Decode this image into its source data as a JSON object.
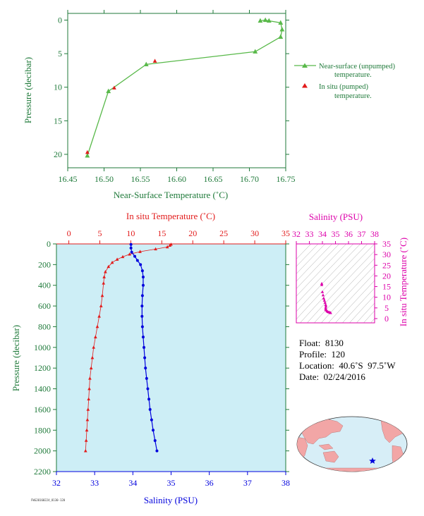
{
  "colors": {
    "green_axis": "#1f7a3a",
    "green_series": "#59b94a",
    "red": "#e21b1b",
    "blue": "#0000dd",
    "magenta": "#dd00aa",
    "panel_fill": "#cdeef6",
    "map_land": "#f2a6a6",
    "map_ocean": "#d7eef7"
  },
  "chart_data": [
    {
      "type": "line",
      "xlabel": "Near-Surface Temperature (˚C)",
      "ylabel": "Pressure (decibar)",
      "xlim": [
        16.45,
        16.75
      ],
      "ylim": [
        22,
        -1
      ],
      "xticks": [
        "16.45",
        "16.50",
        "16.55",
        "16.60",
        "16.65",
        "16.70",
        "16.75"
      ],
      "yticks": [
        "0",
        "5",
        "10",
        "15",
        "20"
      ],
      "legend": {
        "placement": "right",
        "entries": [
          "Near-surface (unpumped) temperature.",
          "In situ (pumped) temperature."
        ]
      },
      "series": [
        {
          "name": "Near-surface (unpumped) temperature.",
          "points": [
            [
              16.477,
              20.2
            ],
            [
              16.506,
              10.6
            ],
            [
              16.558,
              6.6
            ],
            [
              16.708,
              4.7
            ],
            [
              16.743,
              2.5
            ],
            [
              16.745,
              1.4
            ],
            [
              16.743,
              0.4
            ],
            [
              16.727,
              0.1
            ],
            [
              16.722,
              0.0
            ],
            [
              16.715,
              0.1
            ]
          ]
        },
        {
          "name": "In situ (pumped) temperature.",
          "points": [
            [
              16.477,
              19.7
            ],
            [
              16.514,
              10.1
            ],
            [
              16.57,
              6.1
            ]
          ]
        }
      ]
    },
    {
      "type": "line",
      "ylabel": "Pressure (decibar)",
      "ylim": [
        2200,
        0
      ],
      "yticks": [
        "0",
        "200",
        "400",
        "600",
        "800",
        "1000",
        "1200",
        "1400",
        "1600",
        "1800",
        "2000",
        "2200"
      ],
      "x_top": {
        "label": "In situ Temperature (˚C)",
        "lim": [
          -2,
          35
        ],
        "ticks": [
          "0",
          "5",
          "10",
          "15",
          "20",
          "25",
          "30",
          "35"
        ]
      },
      "x_bottom": {
        "label": "Salinity (PSU)",
        "lim": [
          32,
          38
        ],
        "ticks": [
          "32",
          "33",
          "34",
          "35",
          "36",
          "37",
          "38"
        ]
      },
      "series": [
        {
          "name": "In situ Temperature (˚C)",
          "axis": "top",
          "points": [
            [
              16.5,
              5
            ],
            [
              16.3,
              15
            ],
            [
              15.9,
              30
            ],
            [
              14,
              50
            ],
            [
              11.5,
              75
            ],
            [
              9.8,
              100
            ],
            [
              8.7,
              125
            ],
            [
              7.8,
              150
            ],
            [
              7,
              180
            ],
            [
              6.4,
              220
            ],
            [
              5.9,
              270
            ],
            [
              5.7,
              320
            ],
            [
              5.6,
              380
            ],
            [
              5.4,
              500
            ],
            [
              5.2,
              600
            ],
            [
              4.9,
              700
            ],
            [
              4.6,
              800
            ],
            [
              4.3,
              900
            ],
            [
              4.0,
              1000
            ],
            [
              3.8,
              1100
            ],
            [
              3.6,
              1200
            ],
            [
              3.4,
              1300
            ],
            [
              3.3,
              1400
            ],
            [
              3.2,
              1500
            ],
            [
              3.1,
              1600
            ],
            [
              3.0,
              1700
            ],
            [
              2.9,
              1800
            ],
            [
              2.8,
              1900
            ],
            [
              2.7,
              2000
            ]
          ]
        },
        {
          "name": "Salinity (PSU)",
          "axis": "bottom",
          "points": [
            [
              33.95,
              5
            ],
            [
              33.95,
              40
            ],
            [
              33.97,
              80
            ],
            [
              34.05,
              120
            ],
            [
              34.12,
              160
            ],
            [
              34.2,
              200
            ],
            [
              34.25,
              260
            ],
            [
              34.27,
              320
            ],
            [
              34.27,
              400
            ],
            [
              34.25,
              500
            ],
            [
              34.24,
              600
            ],
            [
              34.24,
              700
            ],
            [
              34.25,
              800
            ],
            [
              34.27,
              900
            ],
            [
              34.29,
              1000
            ],
            [
              34.31,
              1100
            ],
            [
              34.33,
              1200
            ],
            [
              34.36,
              1300
            ],
            [
              34.39,
              1400
            ],
            [
              34.42,
              1500
            ],
            [
              34.45,
              1600
            ],
            [
              34.49,
              1700
            ],
            [
              34.53,
              1800
            ],
            [
              34.58,
              1900
            ],
            [
              34.63,
              2000
            ]
          ]
        }
      ]
    },
    {
      "type": "scatter",
      "x_label": "Salinity (PSU)",
      "y_label": "In situ Temperature (˚C)",
      "xlim": [
        32,
        38
      ],
      "ylim": [
        -2,
        35
      ],
      "xticks": [
        "32",
        "33",
        "34",
        "35",
        "36",
        "37",
        "38"
      ],
      "yticks": [
        "0",
        "5",
        "10",
        "15",
        "20",
        "25",
        "30",
        "35"
      ],
      "points": [
        [
          33.95,
          16.4
        ],
        [
          33.95,
          15.8
        ],
        [
          34.0,
          12.5
        ],
        [
          34.05,
          11.0
        ],
        [
          34.1,
          9.5
        ],
        [
          34.15,
          8.5
        ],
        [
          34.2,
          7.5
        ],
        [
          34.25,
          6.5
        ],
        [
          34.27,
          5.8
        ],
        [
          34.25,
          5.0
        ],
        [
          34.25,
          4.3
        ],
        [
          34.29,
          4.0
        ],
        [
          34.35,
          3.5
        ],
        [
          34.42,
          3.2
        ],
        [
          34.5,
          3.0
        ],
        [
          34.58,
          2.8
        ],
        [
          34.63,
          2.7
        ]
      ]
    }
  ],
  "float_info": {
    "float": "Float:  8130",
    "profile": "Profile:  120",
    "location": "Location:  40.6˚S  97.5˚W",
    "date": "Date:  02/24/2016"
  },
  "footer_code": "FWG20160224_8130-120"
}
